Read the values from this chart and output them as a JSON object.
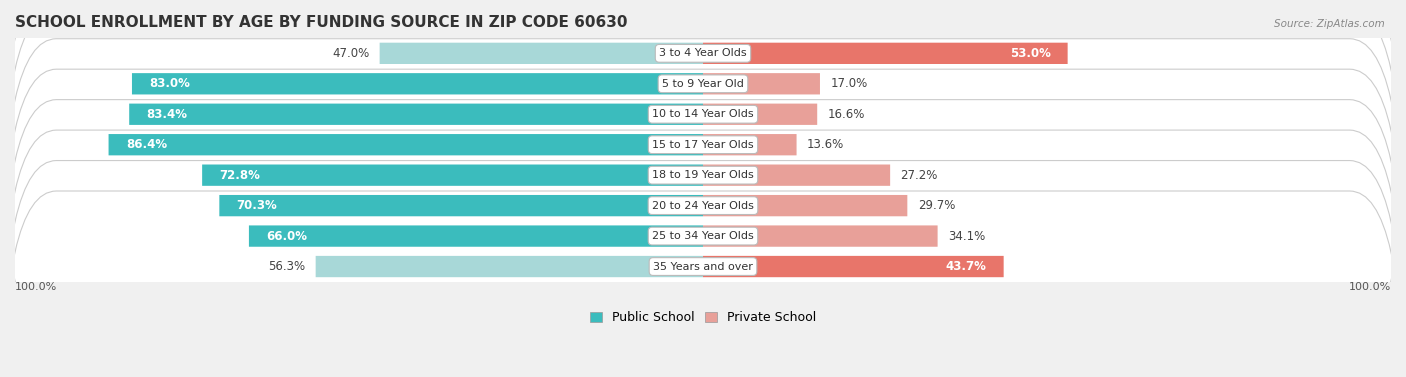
{
  "title": "SCHOOL ENROLLMENT BY AGE BY FUNDING SOURCE IN ZIP CODE 60630",
  "source": "Source: ZipAtlas.com",
  "categories": [
    "3 to 4 Year Olds",
    "5 to 9 Year Old",
    "10 to 14 Year Olds",
    "15 to 17 Year Olds",
    "18 to 19 Year Olds",
    "20 to 24 Year Olds",
    "25 to 34 Year Olds",
    "35 Years and over"
  ],
  "public_values": [
    47.0,
    83.0,
    83.4,
    86.4,
    72.8,
    70.3,
    66.0,
    56.3
  ],
  "private_values": [
    53.0,
    17.0,
    16.6,
    13.6,
    27.2,
    29.7,
    34.1,
    43.7
  ],
  "public_color_row0": "#a8d8d8",
  "public_color": "#3bbcbd",
  "private_color_row0": "#e8756a",
  "private_color": "#e8a099",
  "bg_color": "#f0f0f0",
  "row_bg": "#e8e8ec",
  "title_fontsize": 11,
  "label_fontsize": 8.5,
  "legend_fontsize": 9,
  "cat_fontsize": 8,
  "axis_label": "100.0%",
  "total": 100.0
}
